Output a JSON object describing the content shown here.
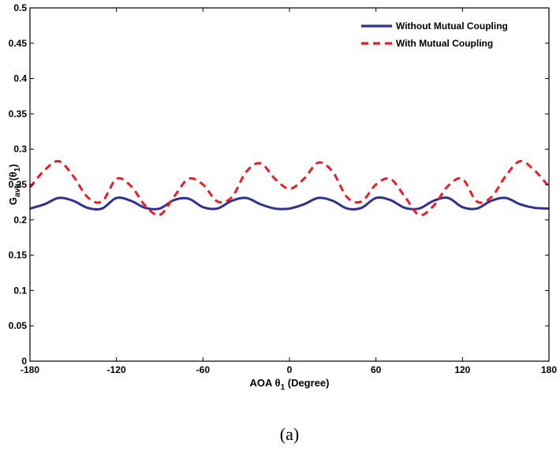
{
  "chart_data": {
    "type": "line",
    "xlabel": {
      "main": "AOA θ",
      "sub": "1",
      "suffix": " (Degree)"
    },
    "ylabel": {
      "main": "G",
      "sub": "avg",
      "mid": " (θ",
      "sub2": "1",
      "suffix": ")"
    },
    "caption": "(a)",
    "xlim": [
      -180,
      180
    ],
    "ylim": [
      0,
      0.5
    ],
    "xticks": [
      -180,
      -120,
      -60,
      0,
      60,
      120,
      180
    ],
    "xtick_labels": [
      "-180",
      "-120",
      "-60",
      "0",
      "60",
      "120",
      "180"
    ],
    "yticks": [
      0,
      0.05,
      0.1,
      0.15,
      0.2,
      0.25,
      0.3,
      0.35,
      0.4,
      0.45,
      0.5
    ],
    "ytick_labels": [
      "0",
      "0.05",
      "0.1",
      "0.15",
      "0.2",
      "0.25",
      "0.3",
      "0.35",
      "0.4",
      "0.45",
      "0.5"
    ],
    "grid": false,
    "legend_position": "top-right",
    "x": [
      -180,
      -170,
      -160,
      -150,
      -140,
      -130,
      -120,
      -110,
      -100,
      -90,
      -80,
      -70,
      -60,
      -50,
      -40,
      -30,
      -20,
      -10,
      0,
      10,
      20,
      30,
      40,
      50,
      60,
      70,
      80,
      90,
      100,
      110,
      120,
      130,
      140,
      150,
      160,
      170,
      180
    ],
    "series": [
      {
        "name": "Without Mutual Coupling",
        "color": "#2e3192",
        "dash": "solid",
        "values": [
          0.216,
          0.222,
          0.231,
          0.227,
          0.217,
          0.216,
          0.231,
          0.227,
          0.217,
          0.216,
          0.228,
          0.23,
          0.218,
          0.216,
          0.227,
          0.231,
          0.222,
          0.216,
          0.216,
          0.222,
          0.231,
          0.227,
          0.216,
          0.217,
          0.231,
          0.228,
          0.217,
          0.216,
          0.227,
          0.231,
          0.218,
          0.216,
          0.227,
          0.231,
          0.222,
          0.217,
          0.216
        ]
      },
      {
        "name": "With Mutual Coupling",
        "color": "#ed1c24",
        "dash": "dashed",
        "values": [
          0.246,
          0.27,
          0.283,
          0.262,
          0.232,
          0.226,
          0.258,
          0.248,
          0.22,
          0.207,
          0.233,
          0.258,
          0.25,
          0.226,
          0.232,
          0.268,
          0.28,
          0.258,
          0.244,
          0.258,
          0.281,
          0.268,
          0.232,
          0.226,
          0.25,
          0.258,
          0.233,
          0.207,
          0.22,
          0.248,
          0.258,
          0.226,
          0.232,
          0.262,
          0.283,
          0.27,
          0.247
        ]
      }
    ]
  }
}
